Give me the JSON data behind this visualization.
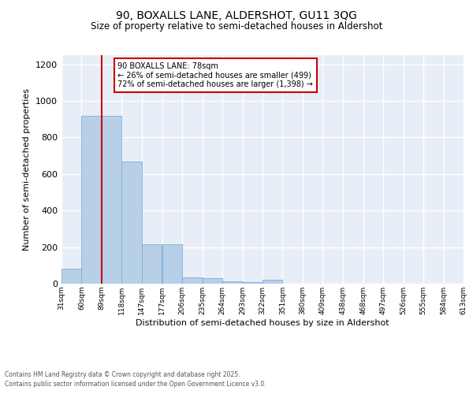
{
  "title1": "90, BOXALLS LANE, ALDERSHOT, GU11 3QG",
  "title2": "Size of property relative to semi-detached houses in Aldershot",
  "xlabel": "Distribution of semi-detached houses by size in Aldershot",
  "ylabel": "Number of semi-detached properties",
  "footnote1": "Contains HM Land Registry data © Crown copyright and database right 2025.",
  "footnote2": "Contains public sector information licensed under the Open Government Licence v3.0.",
  "annotation_title": "90 BOXALLS LANE: 78sqm",
  "annotation_line1": "← 26% of semi-detached houses are smaller (499)",
  "annotation_line2": "72% of semi-detached houses are larger (1,398) →",
  "property_size_bin": 1,
  "red_line_x": 89,
  "bin_edges": [
    31,
    60,
    89,
    118,
    147,
    177,
    206,
    235,
    264,
    293,
    322,
    351,
    380,
    409,
    438,
    468,
    497,
    526,
    555,
    584,
    613
  ],
  "bar_heights": [
    80,
    920,
    920,
    670,
    215,
    215,
    35,
    30,
    15,
    10,
    20,
    0,
    0,
    0,
    0,
    0,
    0,
    0,
    0,
    0
  ],
  "bar_color": "#b8cfe8",
  "bar_edge_color": "#7aafd4",
  "red_line_color": "#cc0000",
  "annotation_box_color": "#cc0000",
  "background_color": "#e8eef7",
  "grid_color": "#ffffff",
  "ylim": [
    0,
    1250
  ],
  "yticks": [
    0,
    200,
    400,
    600,
    800,
    1000,
    1200
  ],
  "fig_width": 6.0,
  "fig_height": 5.0,
  "dpi": 100
}
